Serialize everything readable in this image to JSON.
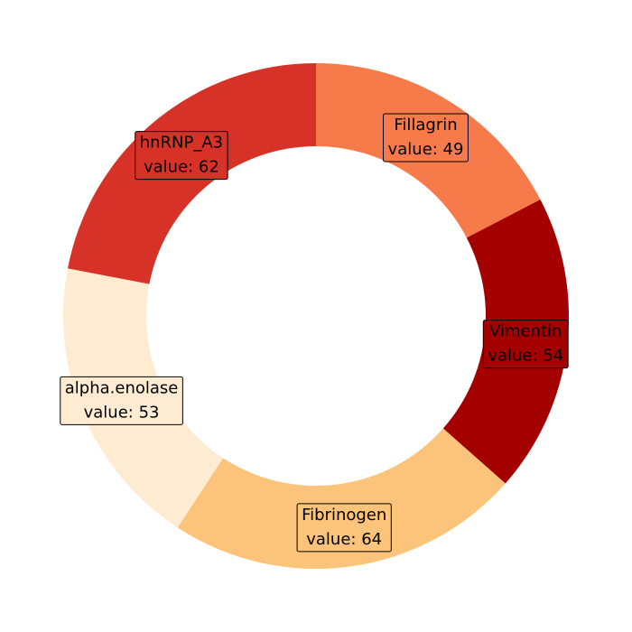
{
  "chart_data": {
    "type": "donut",
    "title": "",
    "value_prefix": "value: ",
    "start": "12 o'clock",
    "direction": "clockwise",
    "legend": "none",
    "slices": [
      {
        "label": "Fillagrin",
        "value": 49,
        "color": "#f77b4a"
      },
      {
        "label": "Vimentin",
        "value": 54,
        "color": "#a50000"
      },
      {
        "label": "Fibrinogen",
        "value": 64,
        "color": "#fbc47a"
      },
      {
        "label": "alpha.enolase",
        "value": 53,
        "color": "#fdecd2"
      },
      {
        "label": "hnRNP_A3",
        "value": 62,
        "color": "#d73227"
      }
    ]
  }
}
